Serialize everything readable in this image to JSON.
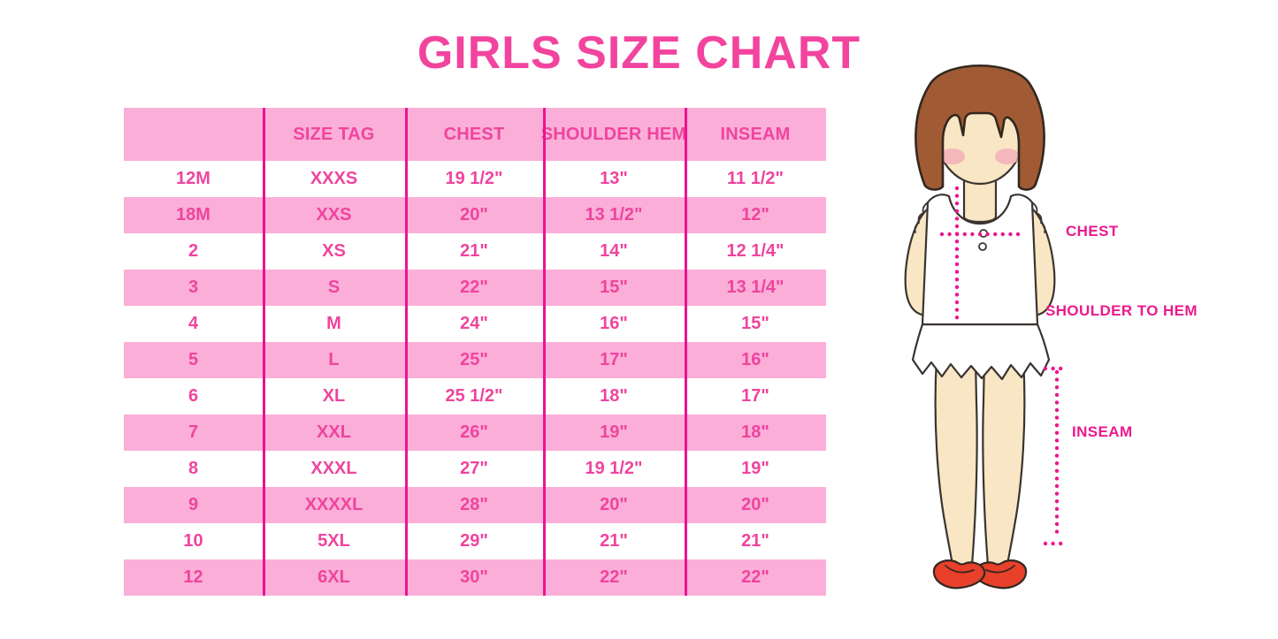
{
  "title": "GIRLS SIZE CHART",
  "table": {
    "headers": [
      "",
      "SIZE TAG",
      "CHEST",
      "SHOULDER HEM",
      "INSEAM"
    ],
    "rows": [
      [
        "12M",
        "XXXS",
        "19 1/2\"",
        "13\"",
        "11 1/2\""
      ],
      [
        "18M",
        "XXS",
        "20\"",
        "13 1/2\"",
        "12\""
      ],
      [
        "2",
        "XS",
        "21\"",
        "14\"",
        "12 1/4\""
      ],
      [
        "3",
        "S",
        "22\"",
        "15\"",
        "13 1/4\""
      ],
      [
        "4",
        "M",
        "24\"",
        "16\"",
        "15\""
      ],
      [
        "5",
        "L",
        "25\"",
        "17\"",
        "16\""
      ],
      [
        "6",
        "XL",
        "25 1/2\"",
        "18\"",
        "17\""
      ],
      [
        "7",
        "XXL",
        "26\"",
        "19\"",
        "18\""
      ],
      [
        "8",
        "XXXL",
        "27\"",
        "19 1/2\"",
        "19\""
      ],
      [
        "9",
        "XXXXL",
        "28\"",
        "20\"",
        "20\""
      ],
      [
        "10",
        "5XL",
        "29\"",
        "21\"",
        "21\""
      ],
      [
        "12",
        "6XL",
        "30\"",
        "22\"",
        "22\""
      ]
    ]
  },
  "diagram": {
    "labels": {
      "chest": "CHEST",
      "shoulder_to_hem": "SHOULDER TO HEM",
      "inseam": "INSEAM"
    }
  },
  "colors": {
    "title_pink": "#F2449E",
    "row_pink": "#FBAFD8",
    "divider_magenta": "#EC1390",
    "text_pink": "#EF449E",
    "label_magenta": "#EB1A8D",
    "dotted_magenta": "#EC1490",
    "hair_brown": "#A05B35",
    "skin": "#F9E6C4",
    "blush": "#F2AEBB",
    "shoe_red": "#E8402A"
  }
}
